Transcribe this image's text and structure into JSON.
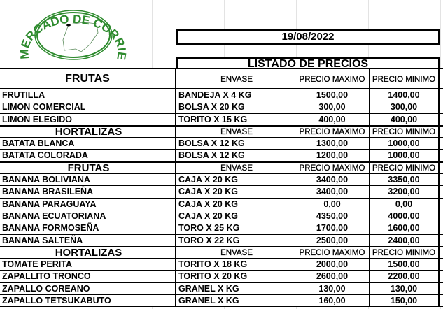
{
  "logo": {
    "text": "MERCADO DE CORRIENTES",
    "color": "#2e8b2e"
  },
  "date": "19/08/2022",
  "title": "LISTADO DE PRECIOS",
  "sections": [
    {
      "name": "FRUTAS",
      "envase": "ENVASE",
      "max": "PRECIO MAXIMO",
      "min": "PRECIO MINIMO",
      "rows": [
        {
          "producto": "FRUTILLA",
          "envase": "BANDEJA X 4 KG",
          "max": "1500,00",
          "min": "1400,00"
        },
        {
          "producto": "LIMON COMERCIAL",
          "envase": "BOLSA X 20 KG",
          "max": "300,00",
          "min": "300,00"
        },
        {
          "producto": "LIMON ELEGIDO",
          "envase": "TORITO X 15 KG",
          "max": "400,00",
          "min": "400,00"
        }
      ]
    },
    {
      "name": "HORTALIZAS",
      "envase": "ENVASE",
      "max": "PRECIO MAXIMO",
      "min": "PRECIO MINIMO",
      "rows": [
        {
          "producto": "BATATA BLANCA",
          "envase": "BOLSA X 12 KG",
          "max": "1300,00",
          "min": "1000,00"
        },
        {
          "producto": "BATATA COLORADA",
          "envase": "BOLSA X 12 KG",
          "max": "1200,00",
          "min": "1000,00"
        }
      ]
    },
    {
      "name": "FRUTAS",
      "envase": "ENVASE",
      "max": "PRECIO MAXIMO",
      "min": "PRECIO MINIMO",
      "rows": [
        {
          "producto": "BANANA BOLIVIANA",
          "envase": "CAJA X 20 KG",
          "max": "3400,00",
          "min": "3350,00"
        },
        {
          "producto": "BANANA BRASILEÑA",
          "envase": "CAJA X 20 KG",
          "max": "3400,00",
          "min": "3200,00"
        },
        {
          "producto": "BANANA PARAGUAYA",
          "envase": "CAJA X 20 KG",
          "max": "0,00",
          "min": "0,00"
        },
        {
          "producto": "BANANA  ECUATORIANA",
          "envase": "CAJA X 20 KG",
          "max": "4350,00",
          "min": "4000,00"
        },
        {
          "producto": "BANANA FORMOSEÑA",
          "envase": "TORO X 25 KG",
          "max": "1700,00",
          "min": "1600,00"
        },
        {
          "producto": "BANANA SALTEÑA",
          "envase": "TORO X 22 KG",
          "max": "2500,00",
          "min": "2400,00"
        }
      ]
    },
    {
      "name": "HORTALIZAS",
      "envase": "ENVASE",
      "max": "PRECIO MAXIMO",
      "min": "PRECIO MINIMO",
      "rows": [
        {
          "producto": "TOMATE PERITA",
          "envase": "TORITO X 18 KG",
          "max": "2000,00",
          "min": "1500,00"
        },
        {
          "producto": "ZAPALLITO TRONCO",
          "envase": "TORITO X 20 KG",
          "max": "2600,00",
          "min": "2200,00"
        },
        {
          "producto": "ZAPALLO COREANO",
          "envase": "GRANEL X KG",
          "max": "130,00",
          "min": "130,00"
        },
        {
          "producto": "ZAPALLO TETSUKABUTO",
          "envase": "GRANEL X KG",
          "max": "160,00",
          "min": "150,00"
        }
      ]
    }
  ]
}
